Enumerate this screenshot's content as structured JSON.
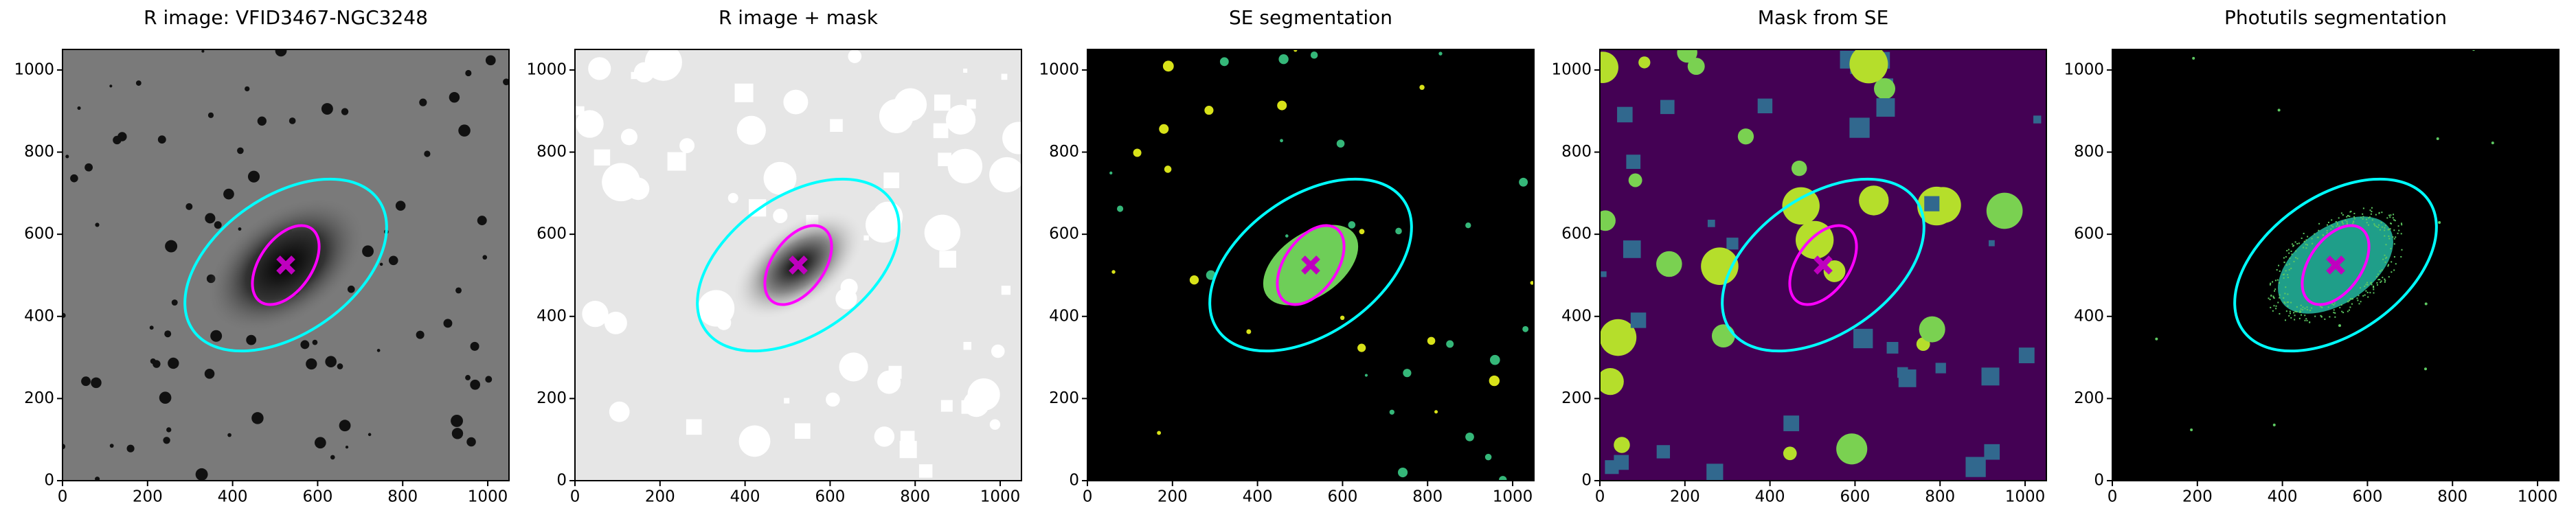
{
  "chart_data": [
    {
      "type": "image",
      "title": "R image: VFID3467-NGC3248",
      "background": "#7a7a7a",
      "xlim": [
        0,
        1050
      ],
      "ylim": [
        0,
        1050
      ],
      "xticks": [
        0,
        200,
        400,
        600,
        800,
        1000
      ],
      "yticks": [
        0,
        200,
        400,
        600,
        800,
        1000
      ]
    },
    {
      "type": "image",
      "title": "R image + mask",
      "background": "#e6e6e6",
      "xlim": [
        0,
        1050
      ],
      "ylim": [
        0,
        1050
      ],
      "xticks": [
        0,
        200,
        400,
        600,
        800,
        1000
      ],
      "yticks": [
        0,
        200,
        400,
        600,
        800,
        1000
      ]
    },
    {
      "type": "image",
      "title": "SE segmentation",
      "background": "#000000",
      "xlim": [
        0,
        1050
      ],
      "ylim": [
        0,
        1050
      ],
      "xticks": [
        0,
        200,
        400,
        600,
        800,
        1000
      ],
      "yticks": [
        0,
        200,
        400,
        600,
        800,
        1000
      ]
    },
    {
      "type": "image",
      "title": "Mask from SE",
      "background": "#440154",
      "xlim": [
        0,
        1050
      ],
      "ylim": [
        0,
        1050
      ],
      "xticks": [
        0,
        200,
        400,
        600,
        800,
        1000
      ],
      "yticks": [
        0,
        200,
        400,
        600,
        800,
        1000
      ]
    },
    {
      "type": "image",
      "title": "Photutils segmentation",
      "background": "#000000",
      "xlim": [
        0,
        1050
      ],
      "ylim": [
        0,
        1050
      ],
      "xticks": [
        0,
        200,
        400,
        600,
        800,
        1000
      ],
      "yticks": [
        0,
        200,
        400,
        600,
        800,
        1000
      ]
    }
  ]
}
